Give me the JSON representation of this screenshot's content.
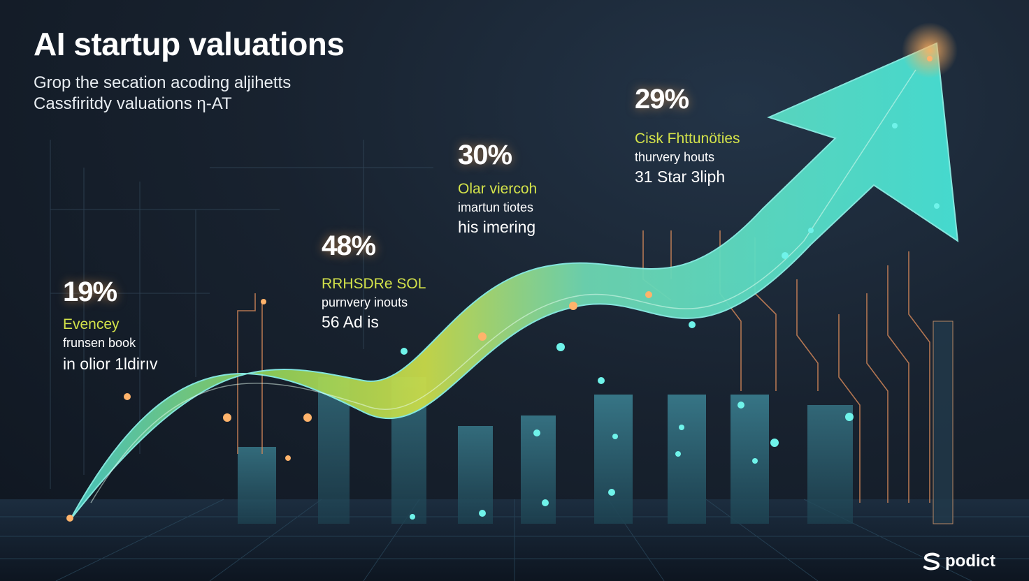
{
  "header": {
    "title": "AI startup valuations",
    "subtitle_line1": "Grop the secation acoding aljihetts",
    "subtitle_line2": "Cassfiritdy valuations η-AT"
  },
  "stats": [
    {
      "percent": "19%",
      "label": "Evencey",
      "line2": "frunsen book",
      "line3": "in olior 1ldirıv"
    },
    {
      "percent": "48%",
      "label": "RRHSDRe SOL",
      "line2": "purnvery inouts",
      "line3": "56 Ad is"
    },
    {
      "percent": "30%",
      "label": "Olar viercoh",
      "line2": "imartun tiotes",
      "line3": "his imering"
    },
    {
      "percent": "29%",
      "label": "Cisk Fhttunöties",
      "line2": "thurvery houts",
      "line3": "31 Star 3liph"
    }
  ],
  "brand": {
    "name": "podict",
    "icon": "s-swirl-logo"
  },
  "colors": {
    "accent_lime": "#d4e34a",
    "accent_cyan": "#4fe3d4",
    "glow_orange": "#ffb060",
    "background": "#18222f"
  }
}
